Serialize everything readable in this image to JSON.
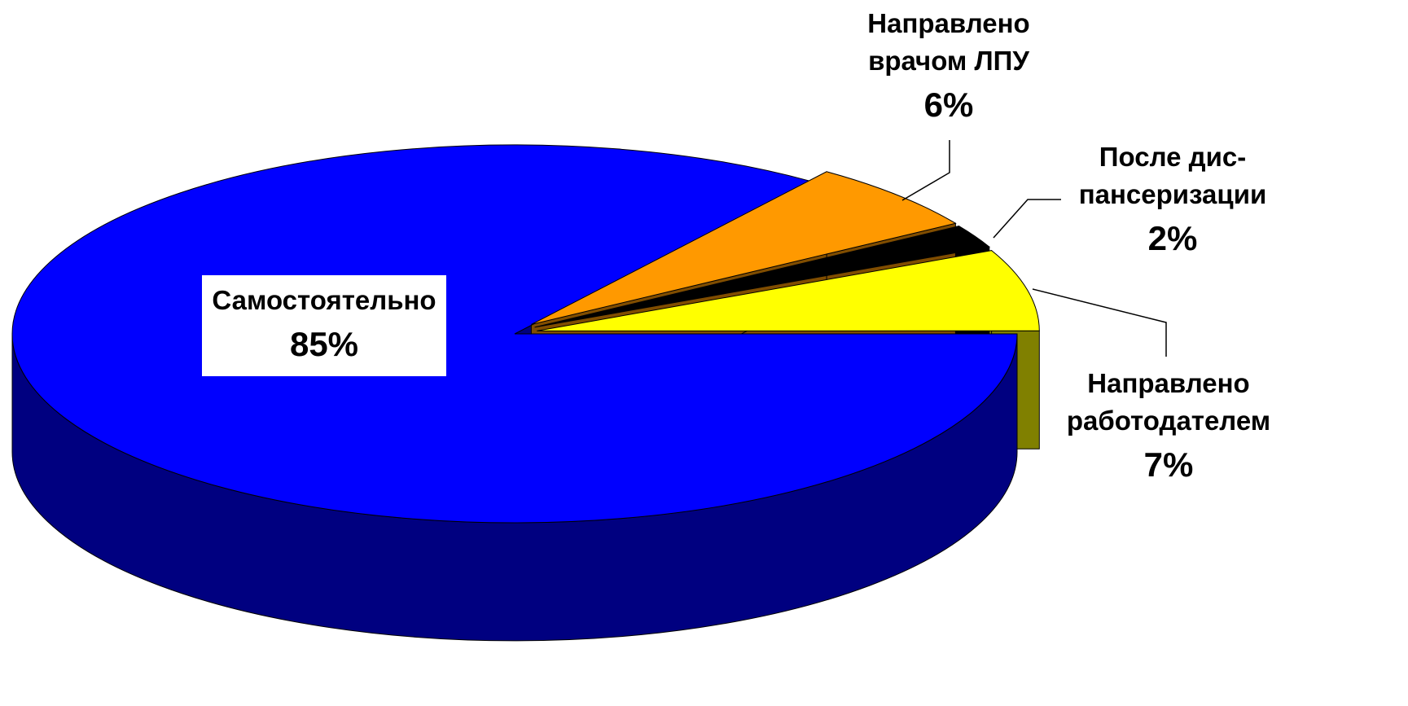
{
  "chart_data": {
    "type": "pie",
    "categories": [
      "Самостоятельно",
      "Направлено\nработодателем",
      "После дис-\nпансеризации",
      "Направлено\nврачом ЛПУ"
    ],
    "values": [
      85,
      7,
      2,
      6
    ],
    "value_labels": [
      "85%",
      "7%",
      "2%",
      "6%"
    ],
    "colors": [
      "#0000ff",
      "#ffff00",
      "#000000",
      "#ff9900"
    ]
  }
}
